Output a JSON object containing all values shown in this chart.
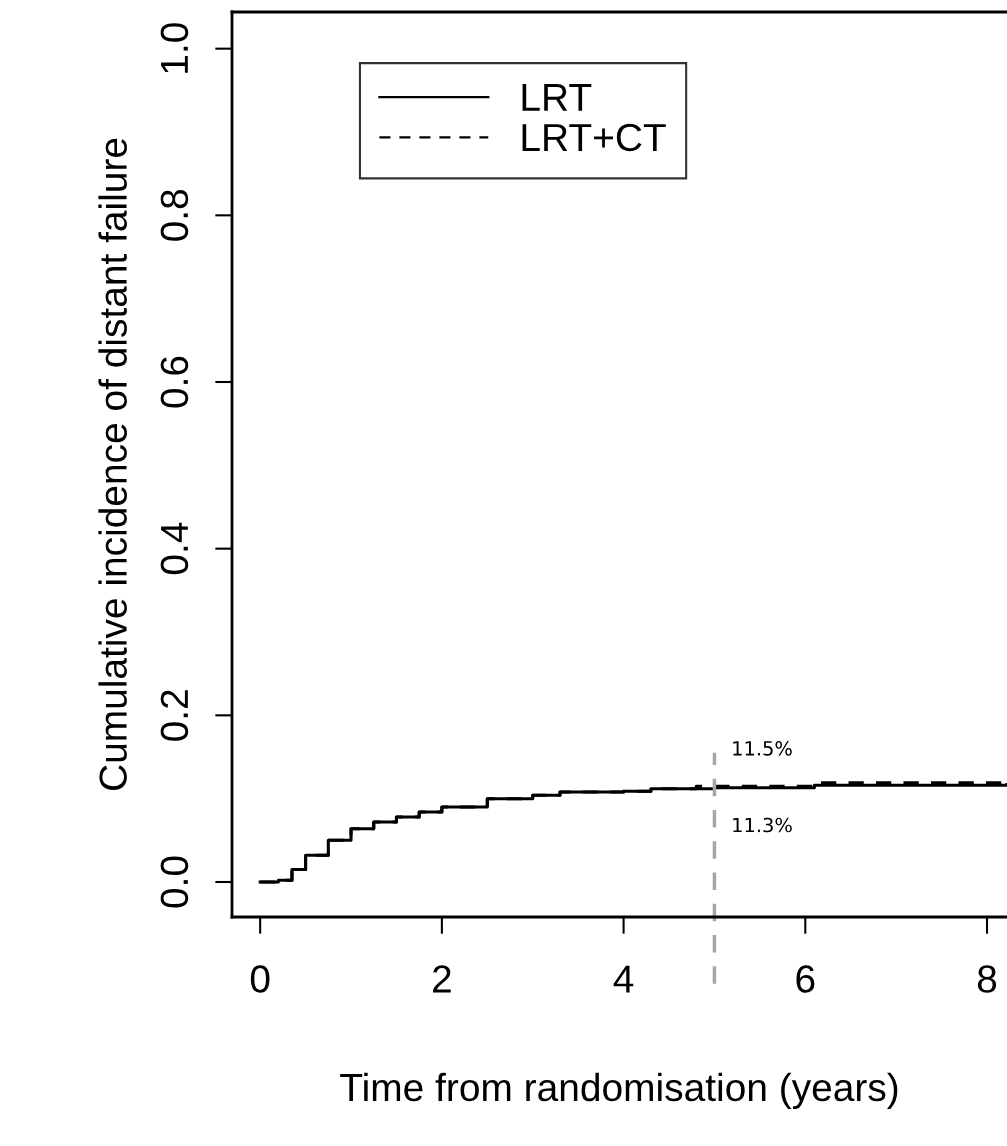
{
  "chart_data": {
    "type": "step",
    "xlabel": "Time from randomisation (years)",
    "ylabel": "Cumulative incidence of distant failure",
    "xlim": [
      -0.31,
      8.22
    ],
    "ylim": [
      -0.042,
      1.044
    ],
    "xticks": [
      0,
      2,
      4,
      6,
      8
    ],
    "yticks": [
      {
        "value": 0,
        "label": "0.0"
      },
      0.2,
      0.4,
      0.6,
      0.8,
      {
        "value": 1,
        "label": "1.0"
      }
    ],
    "grid": false,
    "legend": "top left",
    "series": [
      {
        "name": "LRT",
        "color": "#000000",
        "line_style": "solid",
        "x": [
          0,
          0.2,
          0.35,
          0.5,
          0.75,
          1.0,
          1.25,
          1.5,
          1.75,
          2.0,
          2.5,
          3.0,
          3.3,
          4.0,
          4.3,
          5.0,
          6.1,
          8.22
        ],
        "values": [
          0.0,
          0.002,
          0.015,
          0.032,
          0.05,
          0.064,
          0.072,
          0.078,
          0.084,
          0.09,
          0.1,
          0.104,
          0.108,
          0.109,
          0.112,
          0.113,
          0.116,
          0.117
        ]
      },
      {
        "name": "LRT+CT",
        "color": "#000000",
        "line_style": "dashed",
        "x": [
          0,
          0.2,
          0.35,
          0.5,
          0.75,
          1.0,
          1.25,
          1.5,
          1.75,
          2.0,
          2.5,
          3.0,
          3.3,
          4.0,
          4.3,
          4.8,
          6.1,
          8.22
        ],
        "values": [
          0.0,
          0.002,
          0.015,
          0.032,
          0.05,
          0.064,
          0.072,
          0.078,
          0.084,
          0.09,
          0.1,
          0.104,
          0.108,
          0.109,
          0.112,
          0.115,
          0.119,
          0.119
        ]
      }
    ],
    "ref_lines": [
      {
        "axis": "x",
        "value": 5,
        "color": "#a6a6a6",
        "line_style": "dashed"
      }
    ],
    "annotations": [
      {
        "text": "11.5%",
        "x": 5,
        "y": 0.115
      },
      {
        "text": "11.3%",
        "x": 5,
        "y": 0.113
      }
    ]
  }
}
